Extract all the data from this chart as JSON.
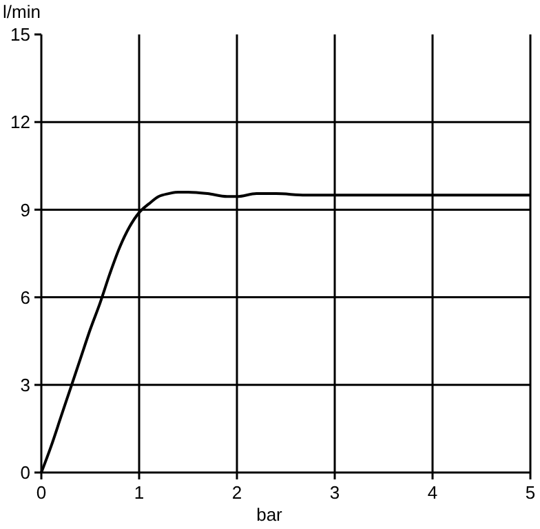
{
  "chart_data": {
    "type": "line",
    "xlabel": "bar",
    "ylabel": "l/min",
    "xlim": [
      0,
      5
    ],
    "ylim": [
      0,
      15
    ],
    "xticks": [
      0,
      1,
      2,
      3,
      4,
      5
    ],
    "yticks": [
      0,
      3,
      6,
      9,
      12,
      15
    ],
    "grid": true,
    "marker": "none",
    "line_style": "solid",
    "series": [
      {
        "color": "#000000",
        "x": [
          0,
          0.1,
          0.2,
          0.3,
          0.4,
          0.5,
          0.6,
          0.7,
          0.8,
          0.9,
          1.0,
          1.1,
          1.2,
          1.3,
          1.4,
          1.5,
          1.7,
          1.9,
          2.0,
          2.2,
          2.4,
          2.7,
          3,
          4,
          5
        ],
        "values": [
          0,
          0.9,
          1.9,
          2.9,
          3.9,
          4.9,
          5.8,
          6.8,
          7.7,
          8.4,
          8.9,
          9.2,
          9.45,
          9.55,
          9.6,
          9.6,
          9.55,
          9.45,
          9.45,
          9.55,
          9.55,
          9.5,
          9.5,
          9.5,
          9.5
        ]
      }
    ]
  }
}
